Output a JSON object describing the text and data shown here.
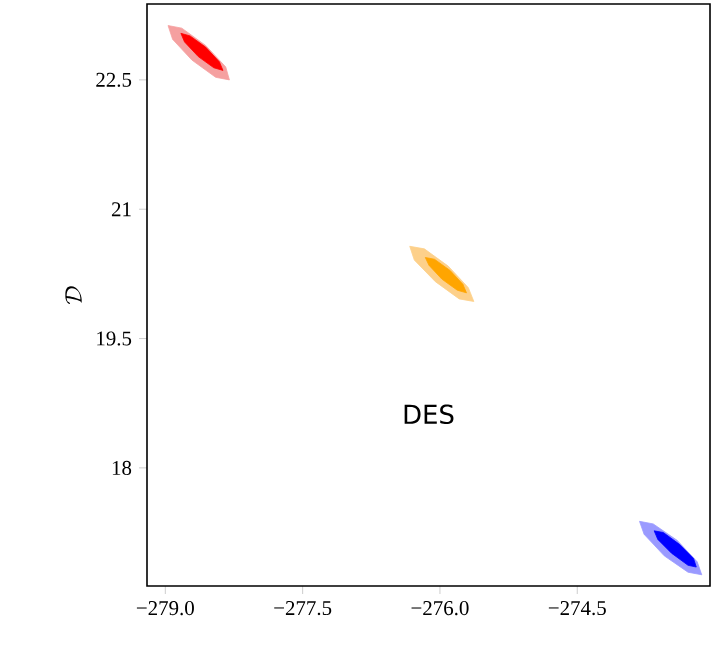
{
  "chart_data": {
    "type": "area",
    "ylabel": "\\mathcal{D}",
    "annotations": [
      "DES"
    ],
    "xlim": [
      -279.2,
      -273.05
    ],
    "ylim": [
      16.63,
      23.38
    ],
    "xticks": [
      {
        "value": -279.0,
        "label": "−279.0"
      },
      {
        "value": -277.5,
        "label": "−277.5"
      },
      {
        "value": -276.0,
        "label": "−276.0"
      },
      {
        "value": -274.5,
        "label": "−274.5"
      }
    ],
    "yticks": [
      18,
      19.5,
      21,
      22.5
    ],
    "series": [
      {
        "color": "#f5a0a0",
        "x": [
          -278.3,
          -278.34,
          -278.56,
          -278.82,
          -278.97,
          -278.92,
          -278.71,
          -278.45
        ],
        "values": [
          22.5,
          22.65,
          22.9,
          23.1,
          23.13,
          22.97,
          22.73,
          22.53
        ]
      },
      {
        "color": "#ff0000",
        "x": [
          -278.37,
          -278.41,
          -278.56,
          -278.73,
          -278.83,
          -278.79,
          -278.64,
          -278.47
        ],
        "values": [
          22.61,
          22.71,
          22.88,
          23.01,
          23.04,
          22.94,
          22.77,
          22.64
        ]
      },
      {
        "color": "#fdd08a",
        "x": [
          -275.63,
          -275.69,
          -275.91,
          -276.17,
          -276.33,
          -276.28,
          -276.05,
          -275.79
        ],
        "values": [
          19.93,
          20.09,
          20.34,
          20.54,
          20.57,
          20.41,
          20.16,
          19.96
        ]
      },
      {
        "color": "#ffa500",
        "x": [
          -275.71,
          -275.75,
          -275.89,
          -276.06,
          -276.16,
          -276.12,
          -275.98,
          -275.81
        ],
        "values": [
          20.03,
          20.13,
          20.29,
          20.42,
          20.44,
          20.35,
          20.19,
          20.06
        ]
      },
      {
        "color": "#9a9aff",
        "x": [
          -273.14,
          -273.19,
          -273.41,
          -273.67,
          -273.82,
          -273.77,
          -273.55,
          -273.29
        ],
        "values": [
          16.76,
          16.91,
          17.16,
          17.35,
          17.38,
          17.23,
          16.98,
          16.79
        ]
      },
      {
        "color": "#0000ff",
        "x": [
          -273.2,
          -273.23,
          -273.38,
          -273.56,
          -273.66,
          -273.62,
          -273.47,
          -273.29
        ],
        "values": [
          16.85,
          16.95,
          17.11,
          17.25,
          17.27,
          17.17,
          17.01,
          16.87
        ]
      }
    ]
  }
}
